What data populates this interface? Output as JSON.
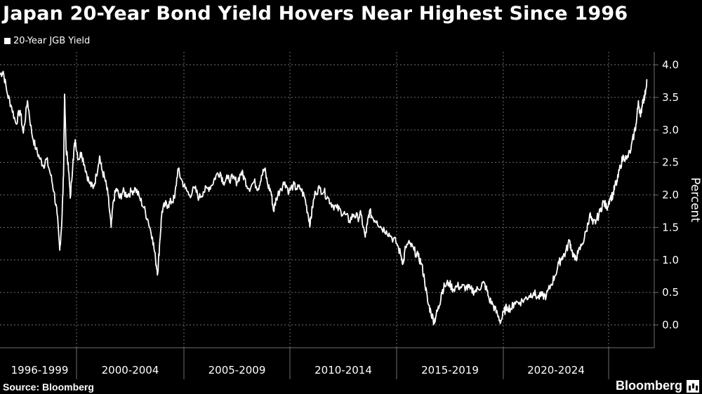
{
  "title": "Japan 20-Year Bond Yield Hovers Near Highest Since 1996",
  "legend_label": "20-Year JGB Yield",
  "source": "Source: Bloomberg",
  "brand": "Bloomberg",
  "icon": "bloomberg-logo-icon",
  "colors": {
    "background": "#000000",
    "line": "#ffffff",
    "grid": "#6e6e6e",
    "text": "#ffffff"
  },
  "chart_data": {
    "type": "line",
    "title": "Japan 20-Year Bond Yield Hovers Near Highest Since 1996",
    "ylabel": "Percent",
    "xlabel": "",
    "ylim": [
      -0.35,
      4.2
    ],
    "xlim": [
      1996.0,
      2025.6
    ],
    "y_ticks": [
      0.0,
      0.5,
      1.0,
      1.5,
      2.0,
      2.5,
      3.0,
      3.5,
      4.0
    ],
    "y_tick_labels": [
      "0.0",
      "0.5",
      "1.0",
      "1.5",
      "2.0",
      "2.5",
      "3.0",
      "3.5",
      "4.0"
    ],
    "x_tick_labels": [
      "1996-1999",
      "2000-2004",
      "2005-2009",
      "2010-2014",
      "2015-2019",
      "2020-2024"
    ],
    "x_ticks": [
      1996.0,
      2000.0,
      2005.0,
      2010.0,
      2015.0,
      2020.0,
      2025.0
    ],
    "grid": true,
    "legend_position": "top-left",
    "series": [
      {
        "name": "20-Year JGB Yield",
        "points": [
          [
            1996.0,
            3.85
          ],
          [
            1996.15,
            3.9
          ],
          [
            1996.35,
            3.55
          ],
          [
            1996.55,
            3.35
          ],
          [
            1996.75,
            3.1
          ],
          [
            1996.95,
            3.3
          ],
          [
            1997.1,
            2.95
          ],
          [
            1997.3,
            3.45
          ],
          [
            1997.5,
            2.95
          ],
          [
            1997.7,
            2.7
          ],
          [
            1997.9,
            2.55
          ],
          [
            1998.05,
            2.45
          ],
          [
            1998.2,
            2.55
          ],
          [
            1998.4,
            2.3
          ],
          [
            1998.55,
            2.05
          ],
          [
            1998.7,
            1.7
          ],
          [
            1998.82,
            1.15
          ],
          [
            1998.92,
            1.6
          ],
          [
            1999.0,
            2.3
          ],
          [
            1999.05,
            3.55
          ],
          [
            1999.12,
            2.7
          ],
          [
            1999.22,
            2.5
          ],
          [
            1999.32,
            1.95
          ],
          [
            1999.45,
            2.55
          ],
          [
            1999.55,
            2.85
          ],
          [
            1999.7,
            2.55
          ],
          [
            1999.85,
            2.65
          ],
          [
            2000.0,
            2.45
          ],
          [
            2000.2,
            2.2
          ],
          [
            2000.4,
            2.1
          ],
          [
            2000.55,
            2.3
          ],
          [
            2000.7,
            2.6
          ],
          [
            2000.8,
            2.4
          ],
          [
            2000.95,
            2.25
          ],
          [
            2001.1,
            2.0
          ],
          [
            2001.25,
            1.5
          ],
          [
            2001.35,
            1.9
          ],
          [
            2001.5,
            2.1
          ],
          [
            2001.65,
            1.95
          ],
          [
            2001.8,
            2.05
          ],
          [
            2002.0,
            2.0
          ],
          [
            2002.2,
            2.05
          ],
          [
            2002.4,
            2.1
          ],
          [
            2002.6,
            1.95
          ],
          [
            2002.8,
            1.8
          ],
          [
            2003.0,
            1.6
          ],
          [
            2003.2,
            1.35
          ],
          [
            2003.35,
            1.0
          ],
          [
            2003.45,
            0.8
          ],
          [
            2003.55,
            1.3
          ],
          [
            2003.65,
            1.75
          ],
          [
            2003.8,
            1.85
          ],
          [
            2003.95,
            1.85
          ],
          [
            2004.1,
            1.9
          ],
          [
            2004.25,
            1.95
          ],
          [
            2004.4,
            2.4
          ],
          [
            2004.55,
            2.25
          ],
          [
            2004.75,
            2.1
          ],
          [
            2004.95,
            2.0
          ],
          [
            2005.2,
            2.1
          ],
          [
            2005.4,
            1.95
          ],
          [
            2005.6,
            2.05
          ],
          [
            2005.8,
            2.1
          ],
          [
            2006.0,
            2.15
          ],
          [
            2006.2,
            2.3
          ],
          [
            2006.4,
            2.35
          ],
          [
            2006.55,
            2.2
          ],
          [
            2006.75,
            2.25
          ],
          [
            2007.0,
            2.25
          ],
          [
            2007.2,
            2.2
          ],
          [
            2007.4,
            2.35
          ],
          [
            2007.55,
            2.25
          ],
          [
            2007.75,
            2.1
          ],
          [
            2008.0,
            2.2
          ],
          [
            2008.2,
            2.1
          ],
          [
            2008.35,
            2.3
          ],
          [
            2008.5,
            2.4
          ],
          [
            2008.65,
            2.15
          ],
          [
            2008.8,
            2.05
          ],
          [
            2008.92,
            1.75
          ],
          [
            2009.05,
            1.95
          ],
          [
            2009.25,
            2.1
          ],
          [
            2009.45,
            2.2
          ],
          [
            2009.65,
            2.05
          ],
          [
            2009.85,
            2.15
          ],
          [
            2010.0,
            2.1
          ],
          [
            2010.2,
            2.1
          ],
          [
            2010.4,
            1.95
          ],
          [
            2010.55,
            1.7
          ],
          [
            2010.65,
            1.55
          ],
          [
            2010.75,
            1.8
          ],
          [
            2010.9,
            2.05
          ],
          [
            2011.1,
            2.1
          ],
          [
            2011.3,
            2.05
          ],
          [
            2011.5,
            1.95
          ],
          [
            2011.7,
            1.85
          ],
          [
            2011.9,
            1.8
          ],
          [
            2012.1,
            1.75
          ],
          [
            2012.3,
            1.7
          ],
          [
            2012.5,
            1.6
          ],
          [
            2012.7,
            1.7
          ],
          [
            2012.9,
            1.65
          ],
          [
            2013.05,
            1.7
          ],
          [
            2013.25,
            1.35
          ],
          [
            2013.35,
            1.55
          ],
          [
            2013.45,
            1.75
          ],
          [
            2013.6,
            1.65
          ],
          [
            2013.8,
            1.6
          ],
          [
            2014.0,
            1.5
          ],
          [
            2014.25,
            1.45
          ],
          [
            2014.5,
            1.35
          ],
          [
            2014.75,
            1.25
          ],
          [
            2014.95,
            1.05
          ],
          [
            2015.05,
            0.95
          ],
          [
            2015.15,
            1.2
          ],
          [
            2015.35,
            1.25
          ],
          [
            2015.55,
            1.15
          ],
          [
            2015.75,
            1.05
          ],
          [
            2015.9,
            0.95
          ],
          [
            2016.05,
            0.7
          ],
          [
            2016.2,
            0.35
          ],
          [
            2016.35,
            0.2
          ],
          [
            2016.5,
            0.05
          ],
          [
            2016.6,
            0.15
          ],
          [
            2016.75,
            0.3
          ],
          [
            2016.85,
            0.5
          ],
          [
            2017.0,
            0.6
          ],
          [
            2017.2,
            0.65
          ],
          [
            2017.4,
            0.55
          ],
          [
            2017.6,
            0.6
          ],
          [
            2017.8,
            0.58
          ],
          [
            2018.0,
            0.58
          ],
          [
            2018.2,
            0.55
          ],
          [
            2018.4,
            0.52
          ],
          [
            2018.6,
            0.55
          ],
          [
            2018.8,
            0.65
          ],
          [
            2018.95,
            0.58
          ],
          [
            2019.1,
            0.4
          ],
          [
            2019.3,
            0.3
          ],
          [
            2019.5,
            0.15
          ],
          [
            2019.65,
            0.05
          ],
          [
            2019.8,
            0.2
          ],
          [
            2019.95,
            0.28
          ],
          [
            2020.15,
            0.25
          ],
          [
            2020.3,
            0.35
          ],
          [
            2020.55,
            0.35
          ],
          [
            2020.8,
            0.4
          ],
          [
            2021.0,
            0.45
          ],
          [
            2021.2,
            0.5
          ],
          [
            2021.4,
            0.42
          ],
          [
            2021.6,
            0.45
          ],
          [
            2021.8,
            0.45
          ],
          [
            2022.0,
            0.6
          ],
          [
            2022.2,
            0.75
          ],
          [
            2022.4,
            0.95
          ],
          [
            2022.55,
            1.05
          ],
          [
            2022.7,
            1.1
          ],
          [
            2022.9,
            1.3
          ],
          [
            2023.0,
            1.15
          ],
          [
            2023.15,
            1.0
          ],
          [
            2023.3,
            1.1
          ],
          [
            2023.5,
            1.25
          ],
          [
            2023.7,
            1.45
          ],
          [
            2023.85,
            1.7
          ],
          [
            2024.0,
            1.55
          ],
          [
            2024.15,
            1.6
          ],
          [
            2024.35,
            1.75
          ],
          [
            2024.5,
            1.9
          ],
          [
            2024.65,
            1.8
          ],
          [
            2024.8,
            1.95
          ],
          [
            2024.95,
            2.0
          ],
          [
            2025.05,
            2.15
          ],
          [
            2025.15,
            2.2
          ],
          [
            2025.3,
            2.45
          ],
          [
            2025.45,
            2.6
          ],
          [
            2025.6,
            2.55
          ],
          [
            2025.8,
            2.7
          ],
          [
            2025.95,
            2.95
          ],
          [
            2026.05,
            3.1
          ],
          [
            2026.15,
            3.45
          ],
          [
            2026.25,
            3.2
          ],
          [
            2026.35,
            3.45
          ],
          [
            2026.45,
            3.5
          ],
          [
            2026.55,
            3.78
          ]
        ]
      }
    ]
  }
}
